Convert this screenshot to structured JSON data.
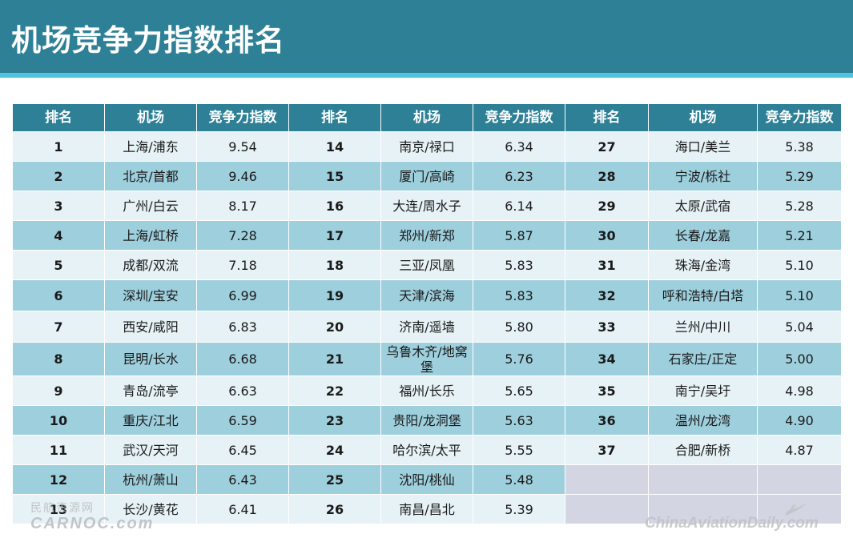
{
  "title": "机场竞争力指数排名",
  "headers": [
    "排名",
    "机场",
    "竞争力指数",
    "排名",
    "机场",
    "竞争力指数",
    "排名",
    "机场",
    "竞争力指数"
  ],
  "rows": [
    [
      {
        "rank": "1",
        "airport": "上海/浦东",
        "index": "9.54"
      },
      {
        "rank": "14",
        "airport": "南京/禄口",
        "index": "6.34"
      },
      {
        "rank": "27",
        "airport": "海口/美兰",
        "index": "5.38"
      }
    ],
    [
      {
        "rank": "2",
        "airport": "北京/首都",
        "index": "9.46"
      },
      {
        "rank": "15",
        "airport": "厦门/高崎",
        "index": "6.23"
      },
      {
        "rank": "28",
        "airport": "宁波/栎社",
        "index": "5.29"
      }
    ],
    [
      {
        "rank": "3",
        "airport": "广州/白云",
        "index": "8.17"
      },
      {
        "rank": "16",
        "airport": "大连/周水子",
        "index": "6.14"
      },
      {
        "rank": "29",
        "airport": "太原/武宿",
        "index": "5.28"
      }
    ],
    [
      {
        "rank": "4",
        "airport": "上海/虹桥",
        "index": "7.28"
      },
      {
        "rank": "17",
        "airport": "郑州/新郑",
        "index": "5.87"
      },
      {
        "rank": "30",
        "airport": "长春/龙嘉",
        "index": "5.21"
      }
    ],
    [
      {
        "rank": "5",
        "airport": "成都/双流",
        "index": "7.18"
      },
      {
        "rank": "18",
        "airport": "三亚/凤凰",
        "index": "5.83"
      },
      {
        "rank": "31",
        "airport": "珠海/金湾",
        "index": "5.10"
      }
    ],
    [
      {
        "rank": "6",
        "airport": "深圳/宝安",
        "index": "6.99"
      },
      {
        "rank": "19",
        "airport": "天津/滨海",
        "index": "5.83"
      },
      {
        "rank": "32",
        "airport": "呼和浩特/白塔",
        "index": "5.10"
      }
    ],
    [
      {
        "rank": "7",
        "airport": "西安/咸阳",
        "index": "6.83"
      },
      {
        "rank": "20",
        "airport": "济南/遥墙",
        "index": "5.80"
      },
      {
        "rank": "33",
        "airport": "兰州/中川",
        "index": "5.04"
      }
    ],
    [
      {
        "rank": "8",
        "airport": "昆明/长水",
        "index": "6.68"
      },
      {
        "rank": "21",
        "airport": "乌鲁木齐/地窝堡",
        "index": "5.76"
      },
      {
        "rank": "34",
        "airport": "石家庄/正定",
        "index": "5.00"
      }
    ],
    [
      {
        "rank": "9",
        "airport": "青岛/流亭",
        "index": "6.63"
      },
      {
        "rank": "22",
        "airport": "福州/长乐",
        "index": "5.65"
      },
      {
        "rank": "35",
        "airport": "南宁/吴圩",
        "index": "4.98"
      }
    ],
    [
      {
        "rank": "10",
        "airport": "重庆/江北",
        "index": "6.59"
      },
      {
        "rank": "23",
        "airport": "贵阳/龙洞堡",
        "index": "5.63"
      },
      {
        "rank": "36",
        "airport": "温州/龙湾",
        "index": "4.90"
      }
    ],
    [
      {
        "rank": "11",
        "airport": "武汉/天河",
        "index": "6.45"
      },
      {
        "rank": "24",
        "airport": "哈尔滨/太平",
        "index": "5.55"
      },
      {
        "rank": "37",
        "airport": "合肥/新桥",
        "index": "4.87"
      }
    ],
    [
      {
        "rank": "12",
        "airport": "杭州/萧山",
        "index": "6.43"
      },
      {
        "rank": "25",
        "airport": "沈阳/桃仙",
        "index": "5.48"
      },
      null
    ],
    [
      {
        "rank": "13",
        "airport": "长沙/黄花",
        "index": "6.41"
      },
      {
        "rank": "26",
        "airport": "南昌/昌北",
        "index": "5.39"
      },
      null
    ]
  ],
  "watermarks": {
    "left_line1": "民航资源网",
    "left_line2": "CARNOC.com",
    "right": "ChinaAviationDaily.com"
  },
  "icons": {
    "watermark_logo": "plane-swoosh-icon"
  },
  "colors": {
    "header_bg": "#2e8096",
    "header_accent": "#4fc3dd",
    "row_light": "#e6f2f6",
    "row_dark": "#9ecfdd",
    "empty_cell": "#d3d5e3"
  }
}
